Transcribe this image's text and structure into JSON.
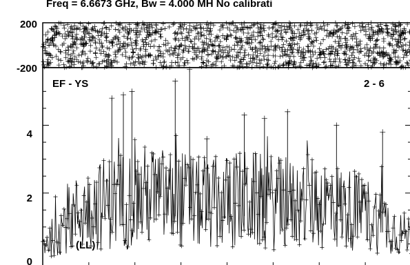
{
  "header": {
    "title": "Freq = 6.6673 GHz, Bw = 4.000 MH   No calibrati"
  },
  "chart_data": [
    {
      "panel": "phase",
      "type": "scatter",
      "ylim": [
        -200,
        200
      ],
      "yticks": [
        "200",
        "-200"
      ],
      "xlim": [
        0,
        128
      ],
      "points_visible": "dense band filling the full range"
    },
    {
      "panel": "amplitude",
      "type": "line",
      "baseline": "EF - YS",
      "channels": "2 - 6",
      "polarization": "(LL)",
      "ylim": [
        0,
        5.7
      ],
      "yticks": [
        "0",
        "2",
        "4"
      ],
      "xlim": [
        0,
        128
      ],
      "envelope": {
        "x": [
          0,
          4,
          8,
          12,
          16,
          20,
          24,
          28,
          32,
          36,
          40,
          44,
          48,
          52,
          56,
          60,
          64,
          68,
          72,
          76,
          80,
          84,
          88,
          92,
          96,
          100,
          104,
          108,
          112,
          116,
          120,
          124,
          128
        ],
        "y": [
          0.6,
          0.9,
          1.4,
          1.7,
          1.9,
          2.0,
          2.1,
          2.2,
          2.2,
          2.3,
          2.3,
          2.2,
          2.2,
          2.1,
          2.0,
          2.0,
          2.1,
          2.2,
          2.2,
          2.1,
          2.1,
          2.0,
          2.0,
          2.1,
          2.1,
          2.0,
          1.9,
          1.8,
          1.7,
          1.5,
          1.3,
          1.0,
          0.9
        ]
      },
      "spikes": [
        {
          "x": 24,
          "y": 4.8
        },
        {
          "x": 28,
          "y": 4.9
        },
        {
          "x": 31,
          "y": 5.0
        },
        {
          "x": 46,
          "y": 5.3
        },
        {
          "x": 51,
          "y": 5.65
        },
        {
          "x": 57,
          "y": 3.6
        },
        {
          "x": 70,
          "y": 4.3
        },
        {
          "x": 77,
          "y": 4.2
        },
        {
          "x": 85,
          "y": 4.4
        },
        {
          "x": 102,
          "y": 4.0
        },
        {
          "x": 118,
          "y": 3.8
        }
      ]
    }
  ]
}
